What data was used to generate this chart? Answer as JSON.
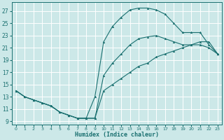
{
  "title": "",
  "xlabel": "Humidex (Indice chaleur)",
  "ylabel": "",
  "background_color": "#cce8e8",
  "grid_color": "#ffffff",
  "line_color": "#1a7070",
  "xlim": [
    -0.5,
    23.5
  ],
  "ylim": [
    8.5,
    28.5
  ],
  "xticks": [
    0,
    1,
    2,
    3,
    4,
    5,
    6,
    7,
    8,
    9,
    10,
    11,
    12,
    13,
    14,
    15,
    16,
    17,
    18,
    19,
    20,
    21,
    22,
    23
  ],
  "yticks": [
    9,
    11,
    13,
    15,
    17,
    19,
    21,
    23,
    25,
    27
  ],
  "curve1_x": [
    0,
    1,
    2,
    3,
    4,
    5,
    6,
    7,
    8,
    9,
    10,
    11,
    12,
    13,
    14,
    15,
    16,
    17,
    18,
    19,
    20,
    21,
    22,
    23
  ],
  "curve1_y": [
    14,
    13,
    12.5,
    12,
    11.5,
    10.5,
    10,
    9.5,
    9.5,
    13,
    22,
    24.5,
    26,
    27.2,
    27.5,
    27.5,
    27.2,
    26.5,
    25,
    23.5,
    23.5,
    23.5,
    21.5,
    20
  ],
  "curve2_x": [
    0,
    1,
    2,
    3,
    4,
    5,
    6,
    7,
    8,
    9,
    10,
    11,
    12,
    13,
    14,
    15,
    16,
    17,
    18,
    19,
    20,
    21,
    22,
    23
  ],
  "curve2_y": [
    14,
    13,
    12.5,
    12,
    11.5,
    10.5,
    10,
    9.5,
    9.5,
    9.5,
    16.5,
    18.5,
    20,
    21.5,
    22.5,
    22.8,
    23,
    22.5,
    22,
    21.5,
    21.5,
    21.5,
    21,
    20
  ],
  "curve3_x": [
    0,
    1,
    2,
    3,
    4,
    5,
    6,
    7,
    8,
    9,
    10,
    11,
    12,
    13,
    14,
    15,
    16,
    17,
    18,
    19,
    20,
    21,
    22,
    23
  ],
  "curve3_y": [
    14,
    13,
    12.5,
    12,
    11.5,
    10.5,
    10,
    9.5,
    9.5,
    9.5,
    14,
    15,
    16,
    17,
    18,
    18.5,
    19.5,
    20,
    20.5,
    21,
    21.5,
    22,
    22,
    20
  ]
}
